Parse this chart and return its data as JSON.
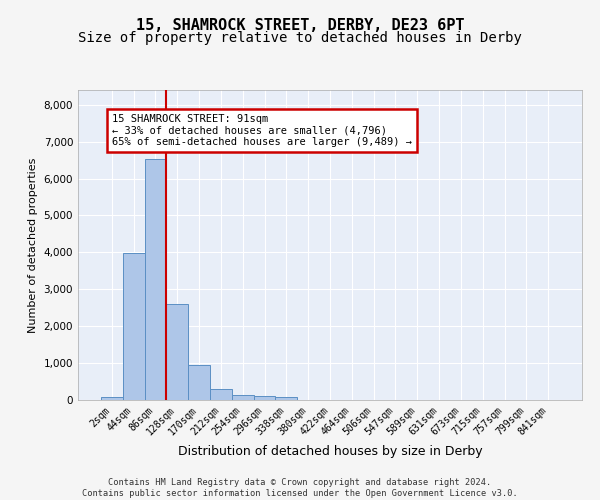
{
  "title_line1": "15, SHAMROCK STREET, DERBY, DE23 6PT",
  "title_line2": "Size of property relative to detached houses in Derby",
  "xlabel": "Distribution of detached houses by size in Derby",
  "ylabel": "Number of detached properties",
  "bar_values": [
    75,
    3980,
    6530,
    2600,
    960,
    310,
    130,
    120,
    90,
    0,
    0,
    0,
    0,
    0,
    0,
    0,
    0,
    0,
    0,
    0,
    0
  ],
  "bar_labels": [
    "2sqm",
    "44sqm",
    "86sqm",
    "128sqm",
    "170sqm",
    "212sqm",
    "254sqm",
    "296sqm",
    "338sqm",
    "380sqm",
    "422sqm",
    "464sqm",
    "506sqm",
    "547sqm",
    "589sqm",
    "631sqm",
    "673sqm",
    "715sqm",
    "757sqm",
    "799sqm",
    "841sqm"
  ],
  "bar_color": "#aec6e8",
  "bar_edge_color": "#5b8fc4",
  "vline_x": 2.5,
  "vline_color": "#cc0000",
  "annotation_text": "15 SHAMROCK STREET: 91sqm\n← 33% of detached houses are smaller (4,796)\n65% of semi-detached houses are larger (9,489) →",
  "annotation_box_color": "#cc0000",
  "ylim": [
    0,
    8400
  ],
  "yticks": [
    0,
    1000,
    2000,
    3000,
    4000,
    5000,
    6000,
    7000,
    8000
  ],
  "background_color": "#e8eef8",
  "grid_color": "#ffffff",
  "footer_text": "Contains HM Land Registry data © Crown copyright and database right 2024.\nContains public sector information licensed under the Open Government Licence v3.0.",
  "title_fontsize": 11,
  "subtitle_fontsize": 10,
  "bar_width": 1.0
}
